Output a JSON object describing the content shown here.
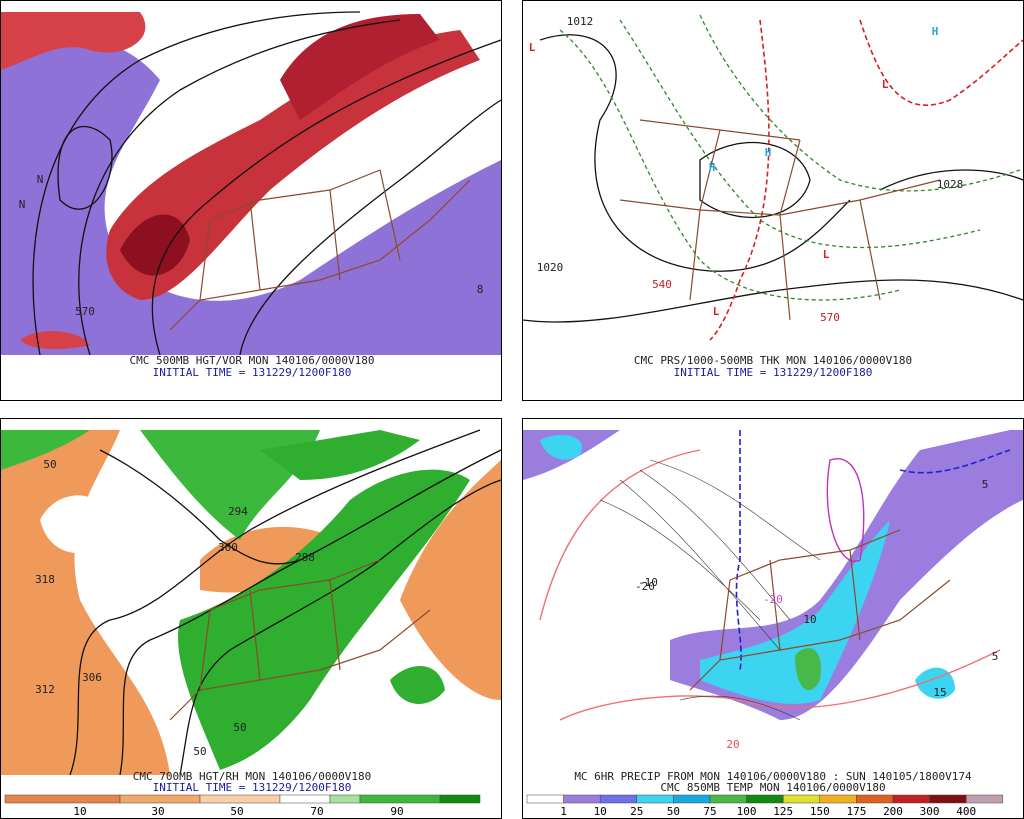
{
  "panels": [
    {
      "title": "CMC 500MB HGT/VOR MON 140106/0000V180",
      "subtitle": "INITIAL TIME = 131229/1200F180",
      "labels": [
        "570",
        "N",
        "8",
        "N"
      ]
    },
    {
      "title": "CMC PRS/1000-500MB THK MON 140106/0000V180",
      "subtitle": "INITIAL TIME = 131229/1200F180",
      "labels": [
        "1012",
        "1020",
        "1028",
        "570",
        "540",
        "L",
        "H",
        "L",
        "H",
        "L",
        "L",
        "H"
      ]
    },
    {
      "title": "CMC 700MB HGT/RH MON 140106/0000V180",
      "subtitle": "INITIAL TIME = 131229/1200F180",
      "labels": [
        "318",
        "312",
        "306",
        "300",
        "288",
        "50",
        "294",
        "50",
        "50"
      ],
      "scale": [
        10,
        30,
        50,
        70,
        90
      ]
    },
    {
      "title": "MC 6HR PRECIP FROM MON 140106/0000V180 : SUN 140105/1800V174",
      "subtitle": "CMC 850MB TEMP MON 140106/0000V180",
      "labels": [
        "-10",
        "-20",
        "20",
        "10",
        "5",
        "15",
        "-20",
        "5"
      ],
      "scale": [
        1,
        10,
        25,
        50,
        75,
        100,
        125,
        150,
        175,
        200,
        300,
        400
      ]
    }
  ]
}
